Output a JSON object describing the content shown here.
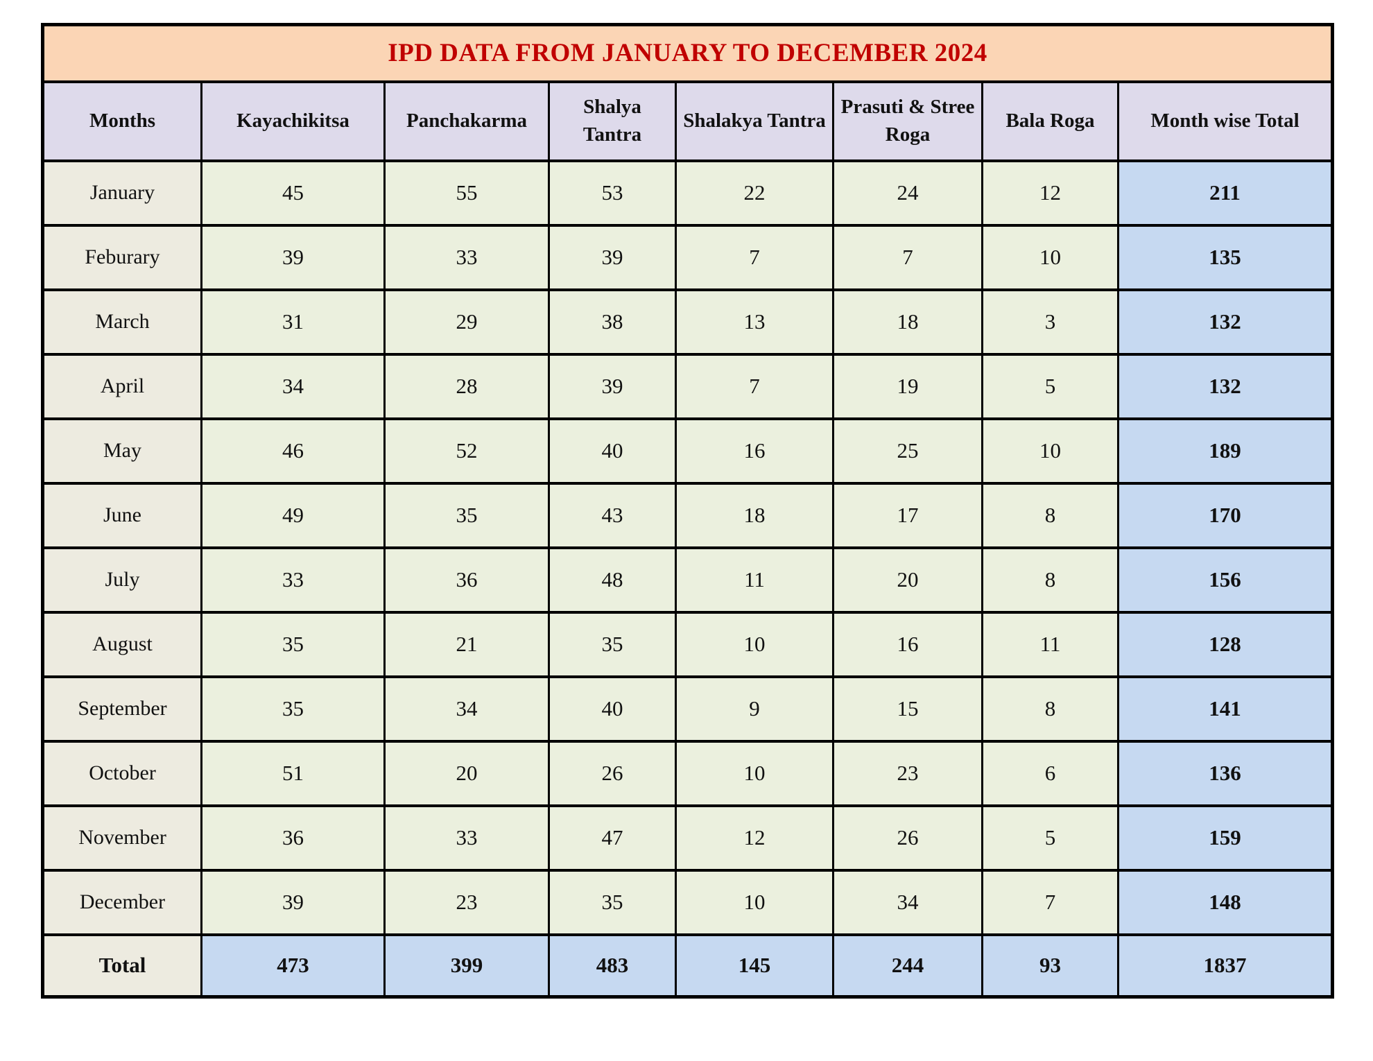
{
  "page": {
    "background": "#FFFFFF"
  },
  "title": "IPD DATA FROM JANUARY TO DECEMBER 2024",
  "colors": {
    "title_bg": "#FBD5B5",
    "title_text": "#C00000",
    "header_bg": "#DEDAEB",
    "month_column_bg": "#EDEBE0",
    "data_cell_bg": "#EBF0DE",
    "total_highlight_bg": "#C6D9F1",
    "border": "#000000"
  },
  "chart_data": {
    "type": "table",
    "title": "IPD DATA FROM JANUARY TO DECEMBER 2024",
    "columns": [
      "Months",
      "Kayachikitsa",
      "Panchakarma",
      "Shalya Tantra",
      "Shalakya Tantra",
      "Prasuti & Stree Roga",
      "Bala Roga",
      "Month wise Total"
    ],
    "rows": [
      [
        "January",
        45,
        55,
        53,
        22,
        24,
        12,
        211
      ],
      [
        "Feburary",
        39,
        33,
        39,
        7,
        7,
        10,
        135
      ],
      [
        "March",
        31,
        29,
        38,
        13,
        18,
        3,
        132
      ],
      [
        "April",
        34,
        28,
        39,
        7,
        19,
        5,
        132
      ],
      [
        "May",
        46,
        52,
        40,
        16,
        25,
        10,
        189
      ],
      [
        "June",
        49,
        35,
        43,
        18,
        17,
        8,
        170
      ],
      [
        "July",
        33,
        36,
        48,
        11,
        20,
        8,
        156
      ],
      [
        "August",
        35,
        21,
        35,
        10,
        16,
        11,
        128
      ],
      [
        "September",
        35,
        34,
        40,
        9,
        15,
        8,
        141
      ],
      [
        "October",
        51,
        20,
        26,
        10,
        23,
        6,
        136
      ],
      [
        "November",
        36,
        33,
        47,
        12,
        26,
        5,
        159
      ],
      [
        "December",
        39,
        23,
        35,
        10,
        34,
        7,
        148
      ]
    ],
    "total_row": [
      "Total",
      473,
      399,
      483,
      145,
      244,
      93,
      1837
    ]
  }
}
